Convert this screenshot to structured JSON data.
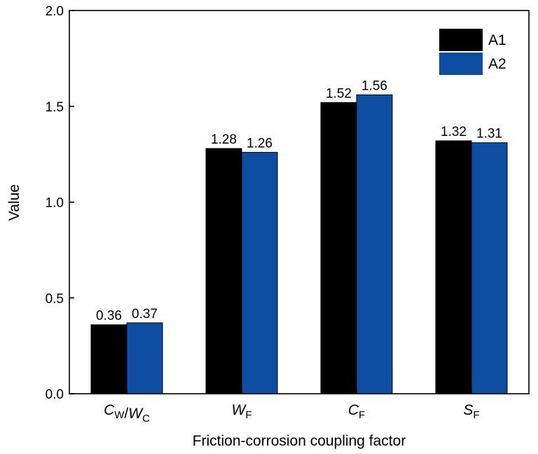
{
  "chart_data": {
    "type": "bar",
    "xlabel": "Friction-corrosion coupling factor",
    "ylabel": "Value",
    "ylim": [
      0,
      2.0
    ],
    "yticks": [
      "0.0",
      "0.5",
      "1.0",
      "1.5",
      "2.0"
    ],
    "grid": false,
    "legend_position": "top-right",
    "categories": [
      {
        "label": "CW/WC",
        "parts": [
          {
            "t": "C",
            "style": "it"
          },
          {
            "t": "W",
            "style": "sub"
          },
          {
            "t": "/",
            "style": ""
          },
          {
            "t": "W",
            "style": "it"
          },
          {
            "t": "C",
            "style": "sub"
          }
        ]
      },
      {
        "label": "WF",
        "parts": [
          {
            "t": "W",
            "style": "it"
          },
          {
            "t": "F",
            "style": "sub"
          }
        ]
      },
      {
        "label": "CF",
        "parts": [
          {
            "t": "C",
            "style": "it"
          },
          {
            "t": "F",
            "style": "sub"
          }
        ]
      },
      {
        "label": "SF",
        "parts": [
          {
            "t": "S",
            "style": "it"
          },
          {
            "t": "F",
            "style": "sub"
          }
        ]
      }
    ],
    "series": [
      {
        "name": "A1",
        "color": "#000000",
        "values": [
          0.36,
          1.28,
          1.52,
          1.32
        ],
        "labels": [
          "0.36",
          "1.28",
          "1.52",
          "1.32"
        ]
      },
      {
        "name": "A2",
        "color": "#0d4ea3",
        "values": [
          0.37,
          1.26,
          1.56,
          1.31
        ],
        "labels": [
          "0.37",
          "1.26",
          "1.56",
          "1.31"
        ]
      }
    ]
  }
}
